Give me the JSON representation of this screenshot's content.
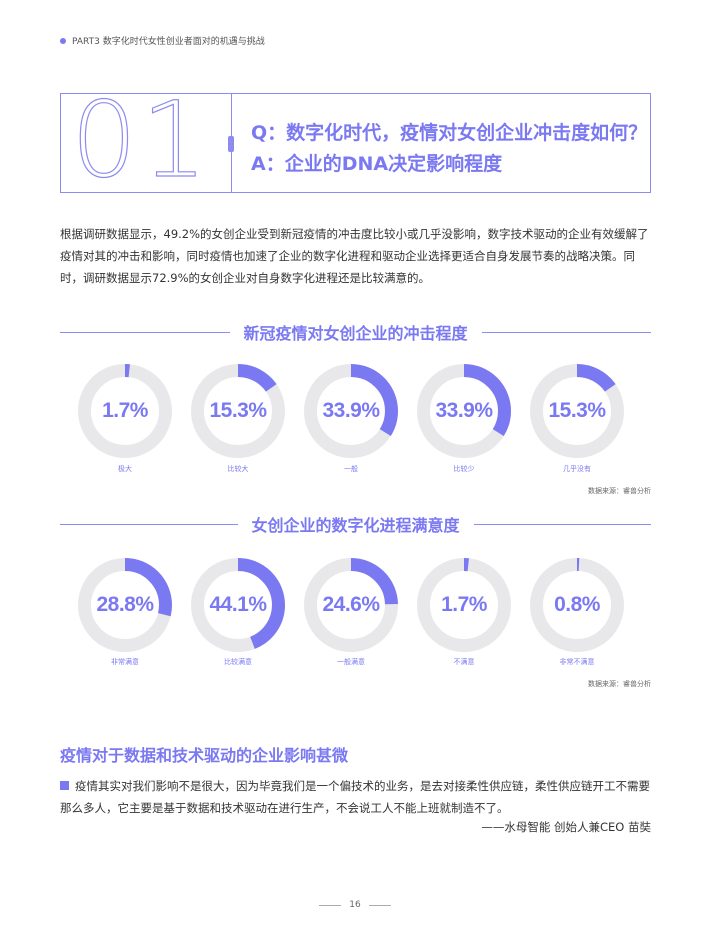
{
  "header": {
    "text": "PART3  数字化时代女性创业者面对的机遇与挑战",
    "accent": "#7b79f2"
  },
  "qa": {
    "number": "01",
    "question": "Q：数字化时代，疫情对女创企业冲击度如何？",
    "answer": "A：企业的DNA决定影响程度"
  },
  "intro": "根据调研数据显示，49.2%的女创企业受到新冠疫情的冲击度比较小或几乎没影响，数字技术驱动的企业有效缓解了疫情对其的冲击和影响，同时疫情也加速了企业的数字化进程和驱动企业选择更适合自身发展节奏的战略决策。同时，调研数据显示72.9%的女创企业对自身数字化进程还是比较满意的。",
  "chart_data": [
    {
      "type": "pie",
      "title": "新冠疫情对女创企业的冲击程度",
      "unit": "%",
      "categories": [
        "极大",
        "比较大",
        "一般",
        "比较少",
        "几乎没有"
      ],
      "values": [
        1.7,
        15.3,
        33.9,
        33.9,
        15.3
      ],
      "labels": [
        "1.7%",
        "15.3%",
        "33.9%",
        "33.9%",
        "15.3%"
      ],
      "source": "数据来源：睿兽分析"
    },
    {
      "type": "pie",
      "title": "女创企业的数字化进程满意度",
      "unit": "%",
      "categories": [
        "非常满意",
        "比较满意",
        "一般满意",
        "不满意",
        "非常不满意"
      ],
      "values": [
        28.8,
        44.1,
        24.6,
        1.7,
        0.8
      ],
      "labels": [
        "28.8%",
        "44.1%",
        "24.6%",
        "1.7%",
        "0.8%"
      ],
      "source": "数据来源：睿兽分析"
    }
  ],
  "colors": {
    "ring_fill": "#7b79f2",
    "ring_track": "#e8e8ea"
  },
  "sub_heading": "疫情对于数据和技术驱动的企业影响甚微",
  "quote": "疫情其实对我们影响不是很大，因为毕竟我们是一个偏技术的业务，是去对接柔性供应链，柔性供应链开工不需要那么多人，它主要是基于数据和技术驱动在进行生产，不会说工人不能上班就制造不了。",
  "quote_author": "——水母智能 创始人兼CEO 苗奘",
  "footer": {
    "page": "16"
  }
}
